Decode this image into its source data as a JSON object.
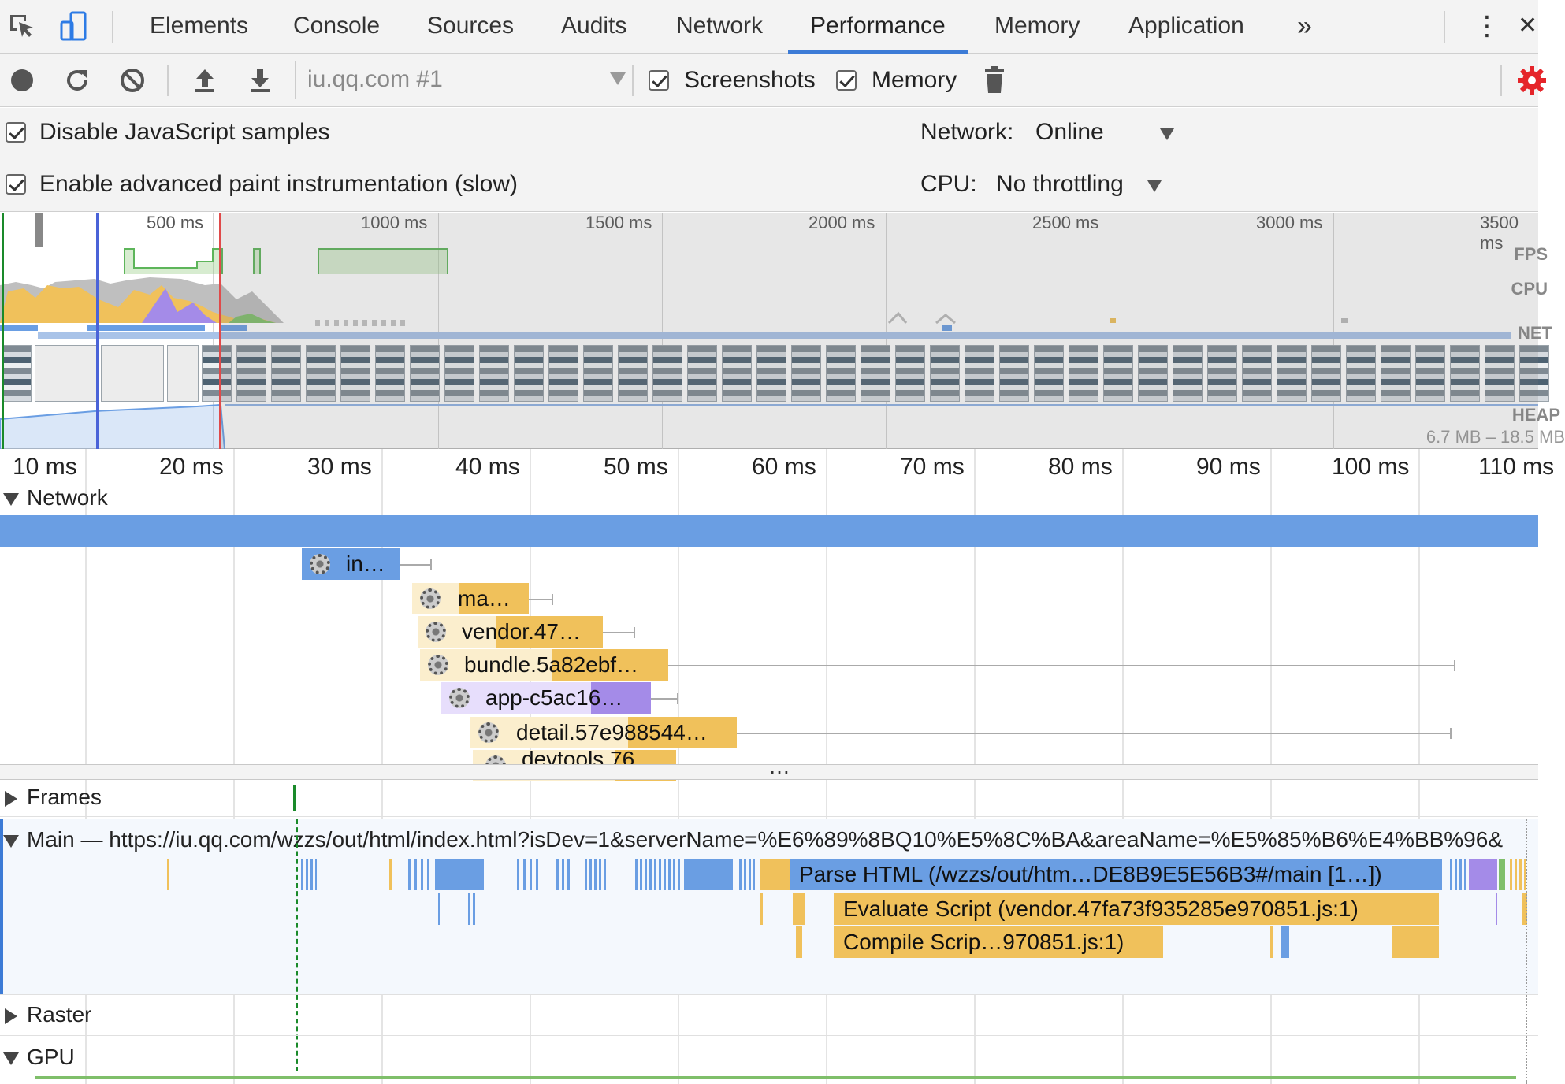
{
  "tabs": {
    "items": [
      "Elements",
      "Console",
      "Sources",
      "Audits",
      "Network",
      "Performance",
      "Memory",
      "Application"
    ],
    "active": "Performance",
    "more_glyph": "»",
    "menu_glyph": "⋮",
    "close_glyph": "✕"
  },
  "toolbar": {
    "profile_select": "iu.qq.com #1",
    "screenshots_label": "Screenshots",
    "screenshots_checked": true,
    "memory_label": "Memory",
    "memory_checked": true
  },
  "settings": {
    "disable_js_samples_label": "Disable JavaScript samples",
    "advanced_paint_label": "Enable advanced paint instrumentation (slow)",
    "network_label": "Network:",
    "network_value": "Online",
    "cpu_label": "CPU:",
    "cpu_value": "No throttling"
  },
  "overview": {
    "ticks": [
      "500 ms",
      "1000 ms",
      "1500 ms",
      "2000 ms",
      "2500 ms",
      "3000 ms",
      "3500 ms"
    ],
    "side_labels": [
      "FPS",
      "CPU",
      "NET",
      "HEAP"
    ],
    "heap_range": "6.7 MB – 18.5 MB"
  },
  "ruler": {
    "ticks": [
      "10 ms",
      "20 ms",
      "30 ms",
      "40 ms",
      "50 ms",
      "60 ms",
      "70 ms",
      "80 ms",
      "90 ms",
      "100 ms",
      "110 ms"
    ]
  },
  "network": {
    "title": "Network",
    "requests": [
      "in…",
      "ma…",
      "vendor.47…",
      "bundle.5a82ebf…",
      "app-c5ac16…",
      "detail.57e988544…",
      "devtools.76…"
    ]
  },
  "tracks": {
    "divider_glyph": "…",
    "frames": "Frames",
    "main": "Main — https://iu.qq.com/wzzs/out/html/index.html?isDev=1&serverName=%E6%89%8BQ10%E5%8C%BA&areaName=%E5%85%B6%E4%BB%96&",
    "raster": "Raster",
    "gpu": "GPU"
  },
  "flame": {
    "parse_html": "Parse HTML (/wzzs/out/htm…DE8B9E5E56B3#/main [1…])",
    "evaluate_script": "Evaluate Script (vendor.47fa73f935285e970851.js:1)",
    "compile_script": "Compile Scrip…970851.js:1)"
  },
  "colors": {
    "loading": "#6a9ee3",
    "scripting": "#f0c15b",
    "rendering": "#a48be8",
    "painting": "#7fbf6a",
    "accent": "#3c7bd6"
  }
}
